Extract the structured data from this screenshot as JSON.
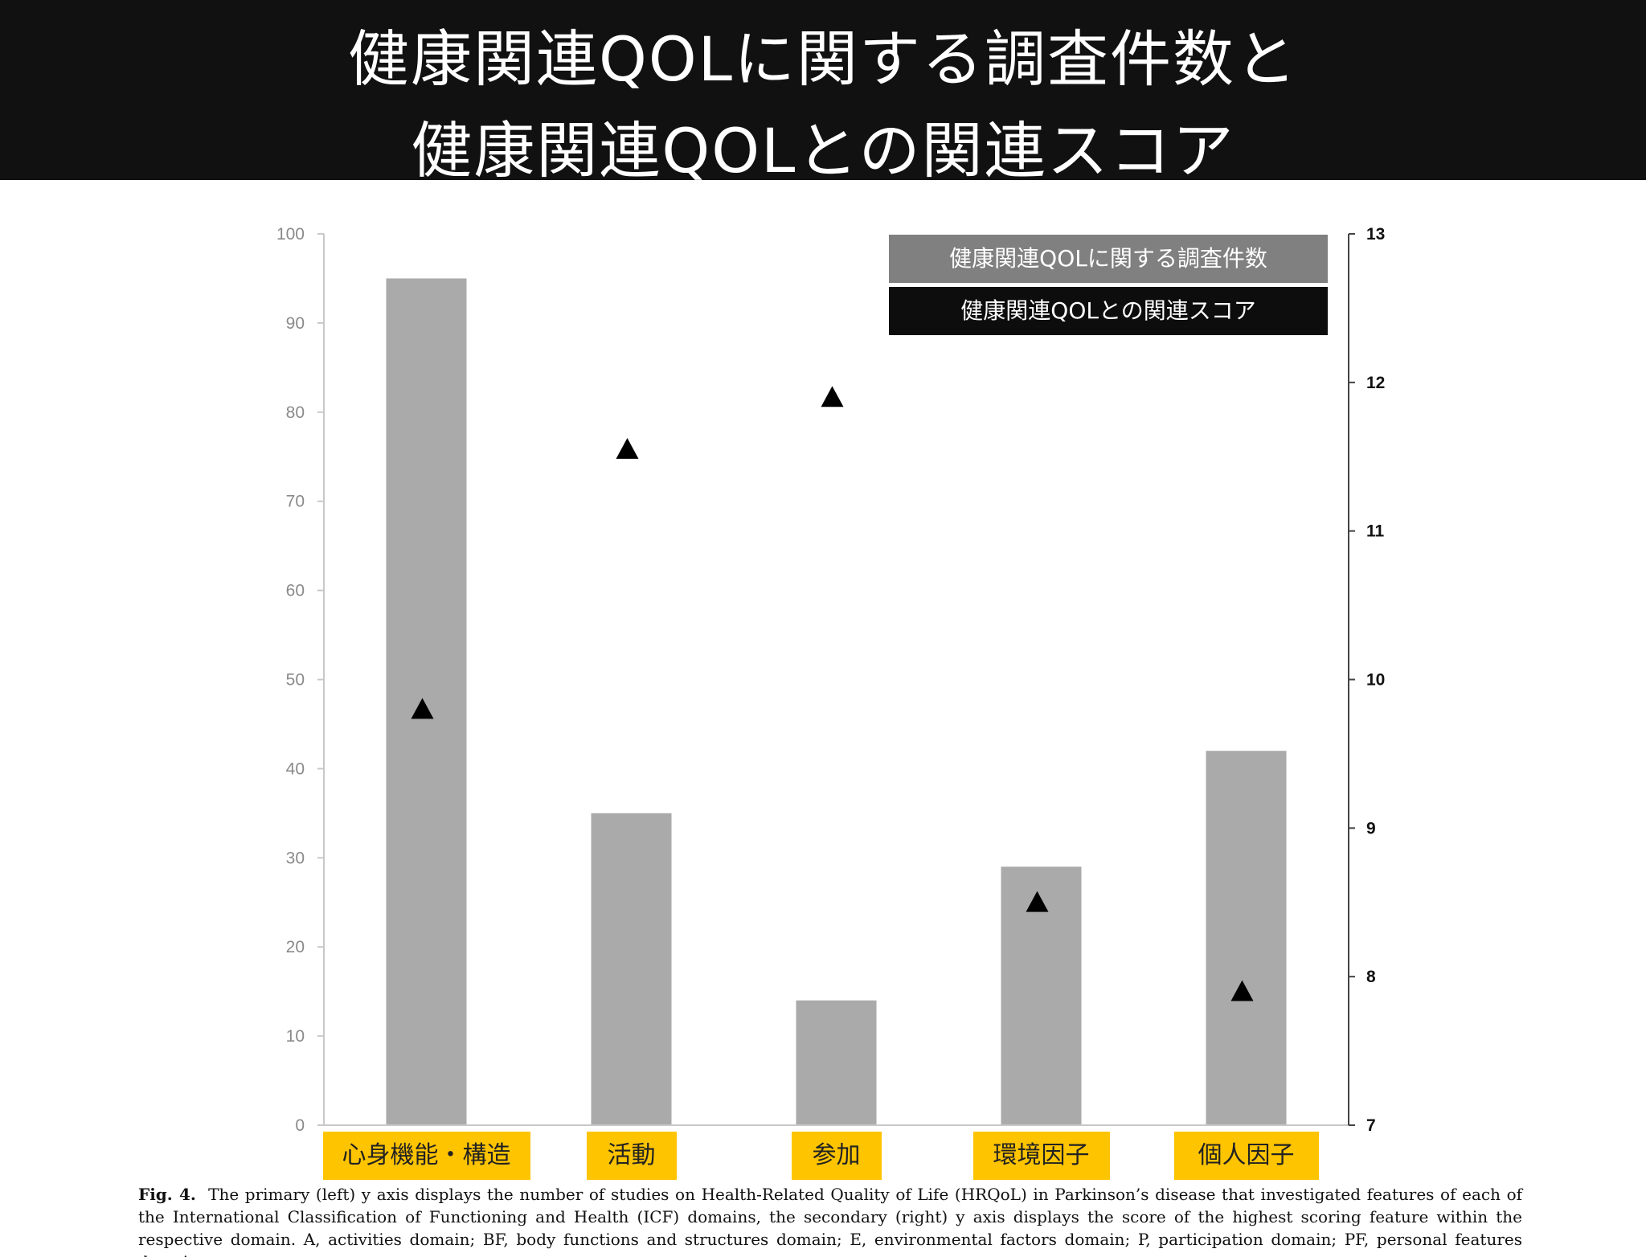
{
  "header": {
    "title_line1": "健康関連QOLに関する調査件数と",
    "title_line2": "健康関連QOLとの関連スコア"
  },
  "legend": {
    "bars_label": "健康関連QOLに関する調査件数",
    "markers_label": "健康関連QOLとの関連スコア"
  },
  "caption": {
    "label": "Fig. 4.",
    "text": "The primary (left) y axis displays the number of studies on Health-Related Quality of Life (HRQoL) in Parkinson’s disease that investigated features of each of the International Classification of Functioning and Health (ICF) domains, the secondary (right) y axis displays the score of the highest scoring feature within the respective domain. A, activities domain; BF, body functions and structures domain; E, environmental factors domain; P, participation domain; PF, personal features domain."
  },
  "colors": {
    "bar": "#aaaaaa",
    "marker": "#000000",
    "category_box": "#ffc400",
    "legend_bars": "#808080",
    "legend_markers": "#0d0d0d"
  },
  "chart_data": {
    "type": "bar",
    "categories": [
      "心身機能・構造",
      "活動",
      "参加",
      "環境因子",
      "個人因子"
    ],
    "series": [
      {
        "name": "健康関連QOLに関する調査件数",
        "type": "bar",
        "axis": "left",
        "values": [
          95,
          35,
          14,
          29,
          42
        ]
      },
      {
        "name": "健康関連QOLとの関連スコア",
        "type": "scatter",
        "marker": "triangle",
        "axis": "right",
        "values": [
          9.8,
          11.55,
          11.9,
          8.5,
          7.9
        ]
      }
    ],
    "y_left": {
      "ylim": [
        0,
        100
      ],
      "ticks": [
        "0",
        "10",
        "20",
        "30",
        "40",
        "50",
        "60",
        "70",
        "80",
        "90",
        "100"
      ]
    },
    "y_right": {
      "ylim": [
        7,
        13
      ],
      "ticks": [
        "7",
        "8",
        "9",
        "10",
        "11",
        "12",
        "13"
      ]
    },
    "grid": false,
    "legend_position": "top-right"
  }
}
